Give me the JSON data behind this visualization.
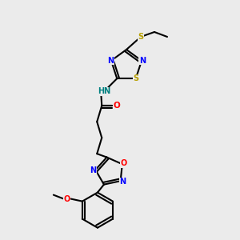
{
  "bg_color": "#ebebeb",
  "bond_color": "#000000",
  "bond_width": 1.5,
  "atom_colors": {
    "N": "#0000ff",
    "O": "#ff0000",
    "S_yellow": "#b8a000",
    "S_ring": "#b8a000",
    "HN": "#008080",
    "C": "#000000"
  },
  "figsize": [
    3.0,
    3.0
  ],
  "dpi": 100
}
